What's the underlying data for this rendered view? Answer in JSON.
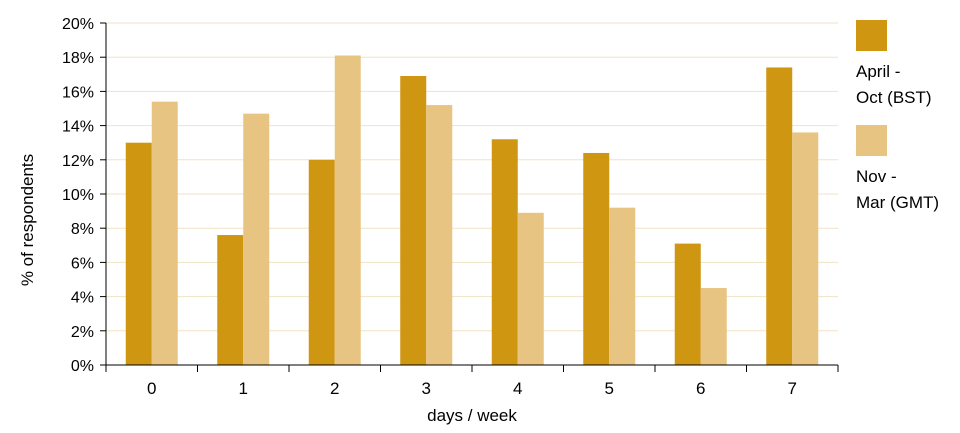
{
  "chart_data": {
    "type": "bar",
    "categories": [
      "0",
      "1",
      "2",
      "3",
      "4",
      "5",
      "6",
      "7"
    ],
    "series": [
      {
        "name": "April -\nOct (BST)",
        "values": [
          13.0,
          7.6,
          12.0,
          16.9,
          13.2,
          12.4,
          7.1,
          17.4
        ],
        "color": "#CF9612"
      },
      {
        "name": "Nov -\nMar (GMT)",
        "values": [
          15.4,
          14.7,
          18.1,
          15.2,
          8.9,
          9.2,
          4.5,
          13.6
        ],
        "color": "#E8C482"
      }
    ],
    "xlabel": "days / week",
    "ylabel": "% of respondents",
    "ylim": [
      0,
      20
    ],
    "yticks": [
      "0%",
      "2%",
      "4%",
      "6%",
      "8%",
      "10%",
      "12%",
      "14%",
      "16%",
      "18%",
      "20%"
    ],
    "grid": true,
    "legend_position": "right"
  }
}
